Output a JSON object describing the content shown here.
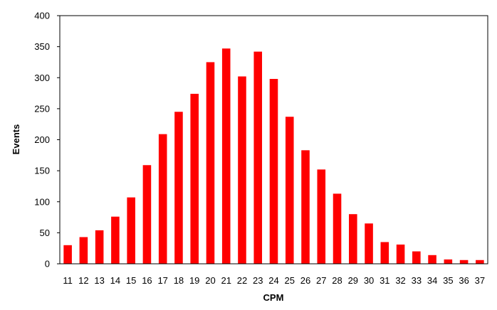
{
  "chart_data": {
    "type": "bar",
    "title": "",
    "xlabel": "CPM",
    "ylabel": "Events",
    "categories": [
      "11",
      "12",
      "13",
      "14",
      "15",
      "16",
      "17",
      "18",
      "19",
      "20",
      "21",
      "22",
      "23",
      "24",
      "25",
      "26",
      "27",
      "28",
      "29",
      "30",
      "31",
      "32",
      "33",
      "34",
      "35",
      "36",
      "37"
    ],
    "values": [
      30,
      43,
      54,
      76,
      107,
      159,
      209,
      245,
      274,
      325,
      347,
      302,
      342,
      298,
      237,
      183,
      152,
      113,
      80,
      65,
      35,
      31,
      20,
      14,
      7,
      6,
      6
    ],
    "ylim": [
      0,
      400
    ],
    "yticks": [
      0,
      50,
      100,
      150,
      200,
      250,
      300,
      350,
      400
    ],
    "grid": false,
    "legend": "none",
    "bar_color": "#ff0000"
  }
}
